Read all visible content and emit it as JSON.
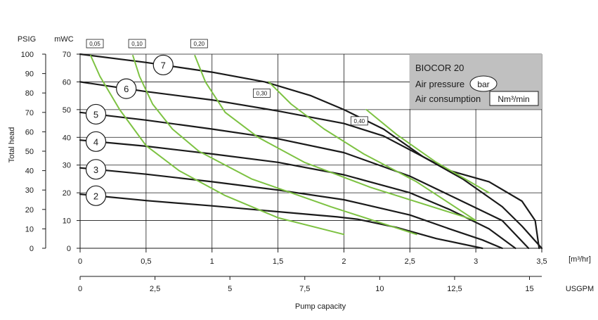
{
  "chart_data": {
    "type": "line",
    "title": "",
    "xlabel": "Pump capacity",
    "ylabel": "Total head",
    "x_unit": "[m³/hr]",
    "x2_unit": "USGPM",
    "y_unit_left": "PSIG",
    "y_unit_right": "mWC",
    "xlim": [
      0,
      3.5
    ],
    "ylim": [
      0,
      70
    ],
    "x_ticks": [
      "0",
      "0,5",
      "1",
      "1,5",
      "2",
      "2,5",
      "3",
      "3,5"
    ],
    "x2_ticks": [
      "0",
      "2,5",
      "5",
      "7,5",
      "10",
      "12,5",
      "15"
    ],
    "y_ticks_mwc": [
      "0",
      "10",
      "20",
      "30",
      "40",
      "50",
      "60",
      "70"
    ],
    "y_ticks_psig": [
      "0",
      "10",
      "20",
      "30",
      "40",
      "50",
      "60",
      "70",
      "80",
      "90",
      "100"
    ],
    "grid": true,
    "info_box": {
      "model": "BIOCOR 20",
      "air_pressure_label": "Air pressure",
      "air_pressure_unit": "bar",
      "air_consumption_label": "Air consumption",
      "air_consumption_unit": "Nm³/min"
    },
    "colors": {
      "pressure_curve": "#1a1a1a",
      "air_curve": "#7dc242",
      "info_box_bg": "#c0c0c0"
    },
    "series": [
      {
        "name": "2",
        "x": [
          0,
          0.5,
          1,
          1.5,
          1.95,
          2.1,
          2.4,
          2.7,
          3.05
        ],
        "y": [
          19.5,
          17.2,
          15.3,
          13.2,
          11.3,
          10.5,
          7.5,
          3.5,
          0
        ]
      },
      {
        "name": "3",
        "x": [
          0,
          0.5,
          1,
          1.5,
          2,
          2.5,
          2.8,
          3.05,
          3.2
        ],
        "y": [
          29,
          26.7,
          24,
          21,
          17.5,
          12,
          7,
          3,
          0
        ]
      },
      {
        "name": "4",
        "x": [
          0,
          0.5,
          1,
          1.5,
          2,
          2.5,
          2.8,
          3.1,
          3.3
        ],
        "y": [
          39,
          36.8,
          34,
          31,
          26.5,
          20,
          14,
          7,
          0
        ]
      },
      {
        "name": "5",
        "x": [
          0,
          0.5,
          1,
          1.5,
          2,
          2.5,
          2.85,
          3.2,
          3.4
        ],
        "y": [
          49,
          46.2,
          43,
          39.5,
          34.5,
          26,
          18,
          10,
          0
        ]
      },
      {
        "name": "6",
        "x": [
          0,
          0.5,
          1,
          1.5,
          2,
          2.3,
          2.6,
          2.9,
          3.2,
          3.35,
          3.5
        ],
        "y": [
          60,
          56.5,
          53.5,
          49.5,
          45,
          40.5,
          33,
          25,
          15,
          8,
          0
        ]
      },
      {
        "name": "7",
        "x": [
          0,
          0.5,
          1,
          1.4,
          1.75,
          2,
          2.3,
          2.6,
          2.8,
          3.1,
          3.35,
          3.45,
          3.48
        ],
        "y": [
          70,
          67,
          63.5,
          60,
          55,
          50,
          43,
          33,
          28,
          24,
          17,
          10,
          0
        ]
      },
      {
        "name": "0,05",
        "x": [
          0.08,
          0.15,
          0.3,
          0.5,
          0.75,
          1.1,
          1.5,
          2
        ],
        "y": [
          69.5,
          62,
          50,
          37,
          28,
          19,
          11,
          5
        ]
      },
      {
        "name": "0,10",
        "x": [
          0.4,
          0.45,
          0.55,
          0.7,
          0.9,
          1.3,
          1.9,
          2.55
        ],
        "y": [
          69.5,
          62,
          52,
          43,
          35,
          25,
          15,
          5
        ]
      },
      {
        "name": "0,20",
        "x": [
          0.87,
          0.95,
          1.1,
          1.35,
          1.7,
          2.2,
          2.8,
          3
        ],
        "y": [
          69.5,
          60,
          49,
          40,
          31,
          22,
          13,
          10
        ]
      },
      {
        "name": "0,30",
        "x": [
          1.43,
          1.6,
          1.85,
          2.15,
          2.55,
          3
        ],
        "y": [
          60,
          52,
          43,
          34,
          24,
          10
        ]
      },
      {
        "name": "0,40",
        "x": [
          2.17,
          2.4,
          2.7,
          3.1
        ],
        "y": [
          50,
          41,
          31,
          20
        ]
      }
    ]
  }
}
